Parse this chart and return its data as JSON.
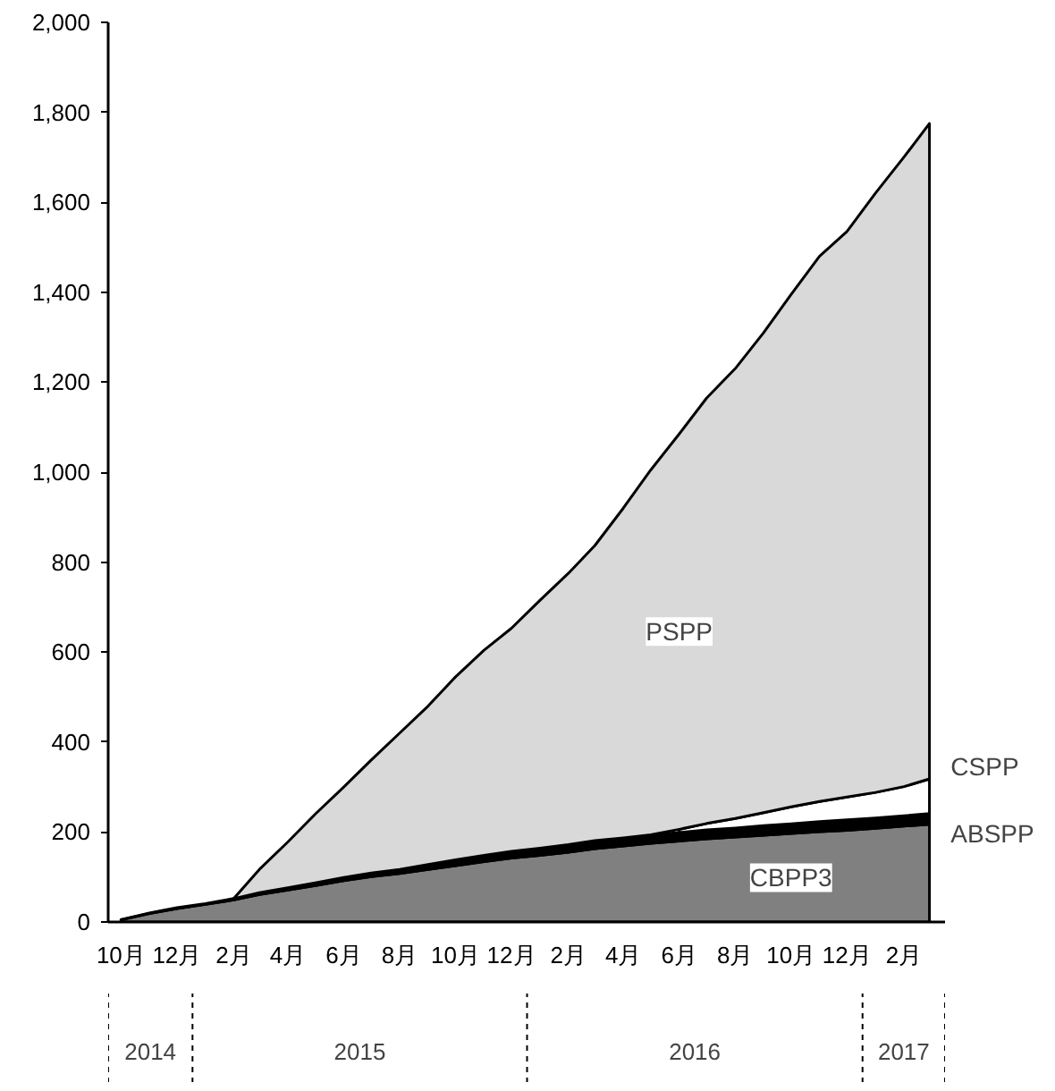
{
  "chart_data": {
    "type": "area",
    "stacked": true,
    "x": [
      "2014-10-15",
      "2014-11-15",
      "2014-12-15",
      "2015-01-15",
      "2015-02-15",
      "2015-03-15",
      "2015-04-15",
      "2015-05-15",
      "2015-06-15",
      "2015-07-15",
      "2015-08-15",
      "2015-09-15",
      "2015-10-15",
      "2015-11-15",
      "2015-12-15",
      "2016-01-15",
      "2016-02-15",
      "2016-03-15",
      "2016-04-15",
      "2016-05-15",
      "2016-06-15",
      "2016-07-15",
      "2016-08-15",
      "2016-09-15",
      "2016-10-15",
      "2016-11-15",
      "2016-12-15",
      "2017-01-15",
      "2017-02-15",
      "2017-03-15"
    ],
    "series": [
      {
        "name": "CBPP3",
        "color": "#808080",
        "values": [
          5,
          19,
          30,
          39,
          49,
          61,
          71,
          81,
          92,
          101,
          108,
          117,
          125,
          134,
          142,
          148,
          155,
          163,
          169,
          175,
          180,
          185,
          189,
          193,
          197,
          201,
          204,
          208,
          213,
          217
        ]
      },
      {
        "name": "ABSPP",
        "color": "#000000",
        "values": [
          0,
          1,
          2,
          2,
          3,
          4,
          5,
          6,
          7,
          8,
          9,
          11,
          13,
          14,
          15,
          16,
          17,
          18,
          18,
          19,
          19,
          20,
          20,
          21,
          21,
          22,
          23,
          23,
          23,
          24
        ]
      },
      {
        "name": "CSPP",
        "color": "#ffffff",
        "values": [
          null,
          null,
          null,
          null,
          null,
          null,
          null,
          null,
          null,
          null,
          null,
          null,
          null,
          null,
          null,
          null,
          null,
          null,
          null,
          null,
          7,
          14,
          21,
          29,
          38,
          45,
          51,
          57,
          65,
          77
        ]
      },
      {
        "name": "PSPP",
        "color": "#d9d9d9",
        "values": [
          null,
          null,
          null,
          null,
          0,
          52,
          102,
          153,
          201,
          251,
          303,
          352,
          407,
          456,
          496,
          551,
          603,
          656,
          733,
          811,
          879,
          946,
          1000,
          1067,
          1139,
          1212,
          1257,
          1332,
          1399,
          1457
        ]
      }
    ],
    "xlim": [
      "2014-10-01",
      "2017-04-01"
    ],
    "xticks": [
      {
        "value": "2014-10-15",
        "label": "10月"
      },
      {
        "value": "2014-12-15",
        "label": "12月"
      },
      {
        "value": "2015-02-15",
        "label": "2月"
      },
      {
        "value": "2015-04-15",
        "label": "4月"
      },
      {
        "value": "2015-06-15",
        "label": "6月"
      },
      {
        "value": "2015-08-15",
        "label": "8月"
      },
      {
        "value": "2015-10-15",
        "label": "10月"
      },
      {
        "value": "2015-12-15",
        "label": "12月"
      },
      {
        "value": "2016-02-15",
        "label": "2月"
      },
      {
        "value": "2016-04-15",
        "label": "4月"
      },
      {
        "value": "2016-06-15",
        "label": "6月"
      },
      {
        "value": "2016-08-15",
        "label": "8月"
      },
      {
        "value": "2016-10-15",
        "label": "10月"
      },
      {
        "value": "2016-12-15",
        "label": "12月"
      },
      {
        "value": "2017-02-15",
        "label": "2月"
      }
    ],
    "ylim": [
      0,
      2000
    ],
    "yticks": [
      0,
      200,
      400,
      600,
      800,
      {
        "value": 1000,
        "label": "1,000"
      },
      {
        "value": 1200,
        "label": "1,200"
      },
      {
        "value": 1400,
        "label": "1,400"
      },
      {
        "value": 1600,
        "label": "1,600"
      },
      {
        "value": 1800,
        "label": "1,800"
      },
      {
        "value": 2000,
        "label": "2,000"
      }
    ],
    "annotations": [
      "2014",
      "2015",
      "2016",
      "2017"
    ],
    "grid": false
  }
}
